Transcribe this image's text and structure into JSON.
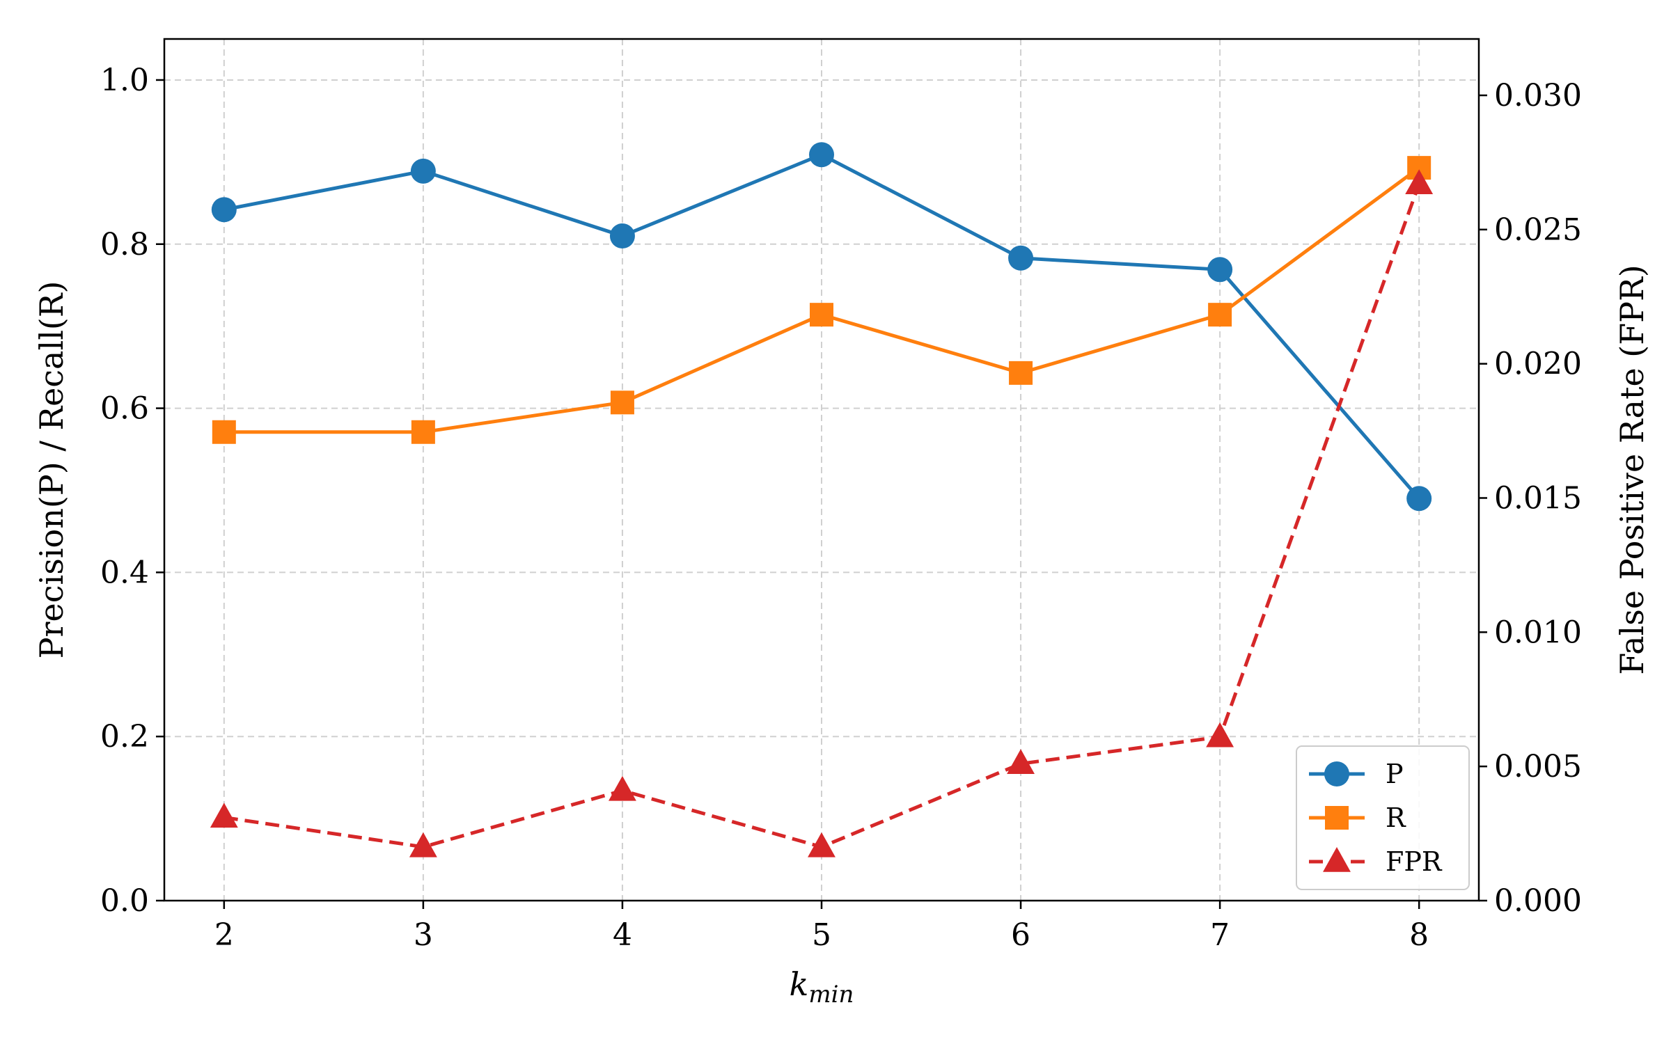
{
  "chart_data": {
    "type": "line",
    "x": [
      2,
      3,
      4,
      5,
      6,
      7,
      8
    ],
    "xlabel_base": "k",
    "xlabel_sub": "min",
    "ylabel_left": "Precision(P) / Recall(R)",
    "ylabel_right": "False Positive Rate (FPR)",
    "xlim": [
      1.7,
      8.3
    ],
    "ylim_left": [
      0.0,
      1.05
    ],
    "ylim_right": [
      0.0,
      0.0321
    ],
    "xticks": [
      "2",
      "3",
      "4",
      "5",
      "6",
      "7",
      "8"
    ],
    "yticks_left": [
      "0.0",
      "0.2",
      "0.4",
      "0.6",
      "0.8",
      "1.0"
    ],
    "yticks_right": [
      "0.000",
      "0.005",
      "0.010",
      "0.015",
      "0.020",
      "0.025",
      "0.030"
    ],
    "grid": true,
    "legend_position": "lower-right",
    "series": [
      {
        "name": "P",
        "axis": "left",
        "color": "#1f77b4",
        "marker": "circle",
        "dash": "solid",
        "values": [
          0.842,
          0.889,
          0.81,
          0.909,
          0.783,
          0.769,
          0.49
        ]
      },
      {
        "name": "R",
        "axis": "left",
        "color": "#ff7f0e",
        "marker": "square",
        "dash": "solid",
        "values": [
          0.571,
          0.571,
          0.607,
          0.714,
          0.643,
          0.714,
          0.893
        ]
      },
      {
        "name": "FPR",
        "axis": "right",
        "color": "#d62728",
        "marker": "triangle",
        "dash": "dashed",
        "values": [
          0.0031,
          0.002,
          0.0041,
          0.002,
          0.0051,
          0.0061,
          0.0267
        ]
      }
    ]
  }
}
